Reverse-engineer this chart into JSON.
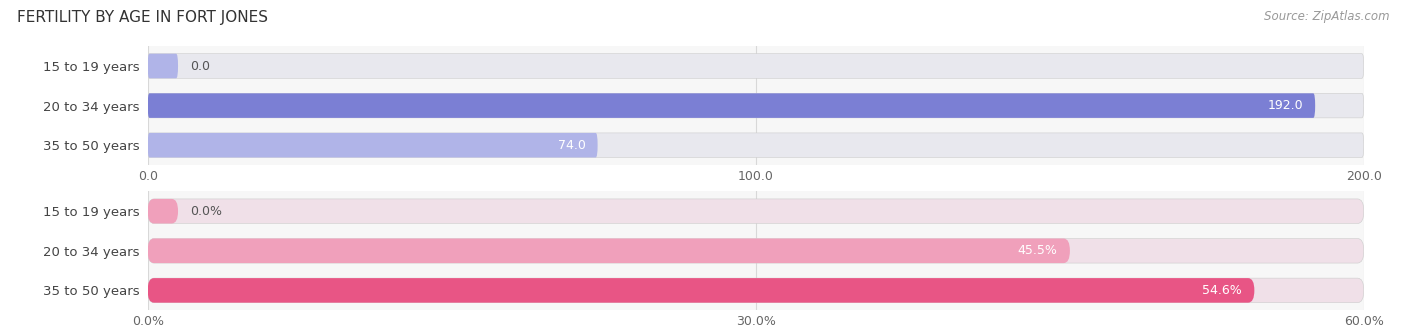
{
  "title": "FERTILITY BY AGE IN FORT JONES",
  "source": "Source: ZipAtlas.com",
  "top_chart": {
    "categories": [
      "15 to 19 years",
      "20 to 34 years",
      "35 to 50 years"
    ],
    "values": [
      0.0,
      192.0,
      74.0
    ],
    "xlim": [
      0,
      200
    ],
    "xticks": [
      0.0,
      100.0,
      200.0
    ],
    "bar_color_strong": "#7b7fd4",
    "bar_color_light": "#b0b4e8",
    "bar_bg_color": "#e8e8ee"
  },
  "bottom_chart": {
    "categories": [
      "15 to 19 years",
      "20 to 34 years",
      "35 to 50 years"
    ],
    "values": [
      0.0,
      45.5,
      54.6
    ],
    "xlim": [
      0,
      60
    ],
    "xticks": [
      0.0,
      30.0,
      60.0
    ],
    "xtick_labels": [
      "0.0%",
      "30.0%",
      "60.0%"
    ],
    "bar_color_strong": "#e85585",
    "bar_color_light": "#f0a0bb",
    "bar_bg_color": "#f0e0e8"
  },
  "fig_bg": "#ffffff",
  "axes_bg": "#f7f7f7",
  "gridline_color": "#d8d8d8",
  "title_fontsize": 11,
  "source_fontsize": 8.5,
  "label_fontsize": 9,
  "ytick_fontsize": 9.5,
  "xtick_fontsize": 9
}
